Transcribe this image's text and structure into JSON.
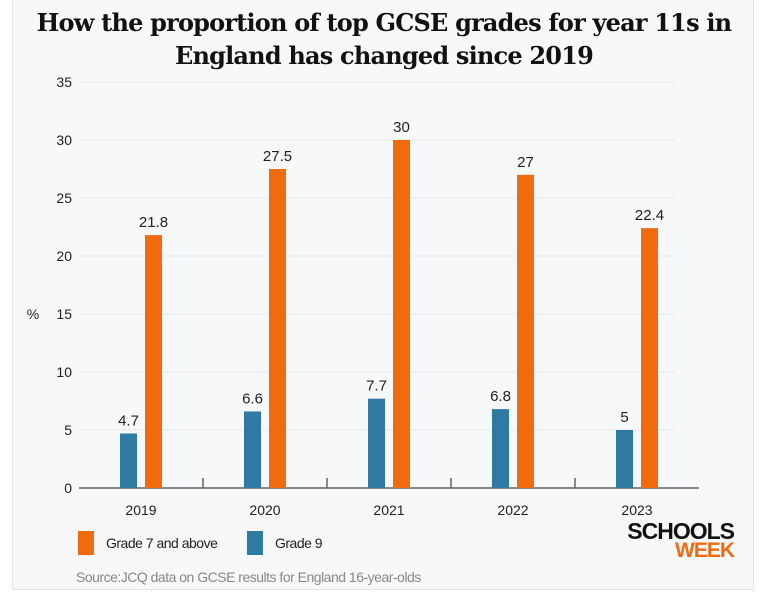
{
  "chart_data": {
    "type": "bar",
    "title": "How the proportion of top GCSE grades for year 11s in England has changed since 2019",
    "categories": [
      "2019",
      "2020",
      "2021",
      "2022",
      "2023"
    ],
    "series": [
      {
        "name": "Grade 9",
        "color": "#2e7aa3",
        "values": [
          4.7,
          6.6,
          7.7,
          6.8,
          5
        ]
      },
      {
        "name": "Grade 7 and above",
        "color": "#f06a0e",
        "values": [
          21.8,
          27.5,
          30,
          27,
          22.4
        ]
      }
    ],
    "data_labels": [
      [
        "4.7",
        "6.6",
        "7.7",
        "6.8",
        "5"
      ],
      [
        "21.8",
        "27.5",
        "30",
        "27",
        "22.4"
      ]
    ],
    "xlabel": "",
    "ylabel": "%",
    "ylim": [
      0,
      35
    ],
    "yticks": [
      "0",
      "5",
      "10",
      "15",
      "20",
      "25",
      "30",
      "35"
    ],
    "grid": true,
    "legend": "bottom-left"
  },
  "legend": {
    "items": [
      "Grade 7 and above",
      "Grade 9"
    ],
    "colors": [
      "#f06a0e",
      "#2e7aa3"
    ]
  },
  "source": "Source:JCQ data on GCSE results for England 16-year-olds",
  "logo": {
    "line1": "SCHOOLS",
    "line2": "WEEK"
  }
}
